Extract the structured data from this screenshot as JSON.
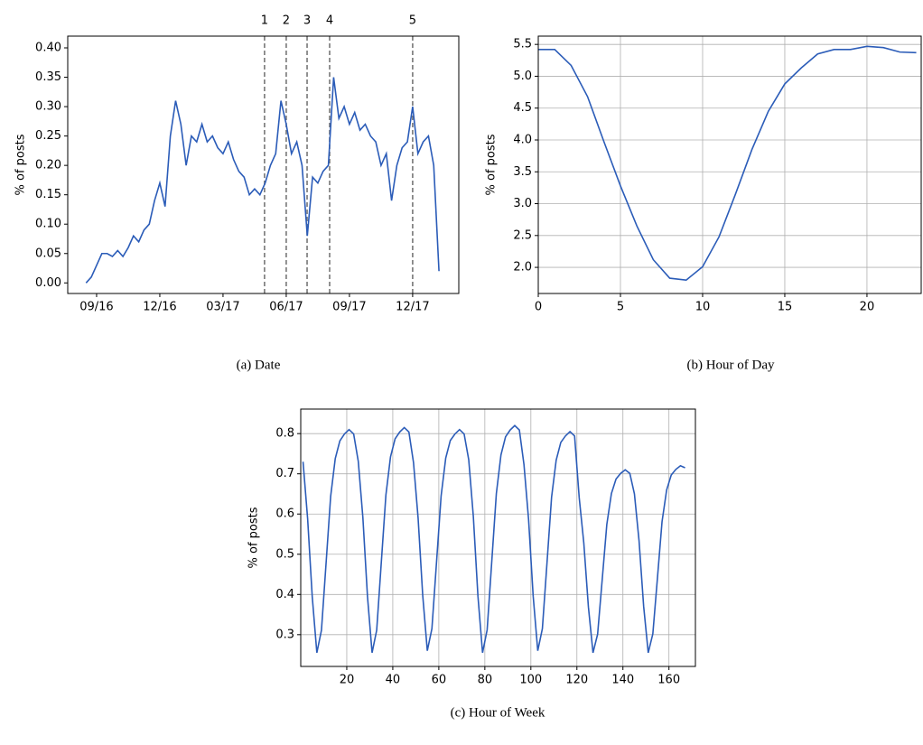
{
  "chart_data": [
    {
      "type": "line",
      "caption": "(a) Date",
      "ylabel": "% of posts",
      "color": "#2b5cb8",
      "grid": false,
      "x": [
        8.5,
        8.75,
        9,
        9.25,
        9.5,
        9.75,
        10,
        10.25,
        10.5,
        10.75,
        11,
        11.25,
        11.5,
        11.75,
        12,
        12.25,
        12.5,
        12.75,
        13,
        13.25,
        13.5,
        13.75,
        14,
        14.25,
        14.5,
        14.75,
        15,
        15.25,
        15.5,
        15.75,
        16,
        16.25,
        16.5,
        16.75,
        17,
        17.25,
        17.5,
        17.75,
        18,
        18.25,
        18.5,
        18.75,
        19,
        19.25,
        19.5,
        19.75,
        20,
        20.25,
        20.5,
        20.75,
        21,
        21.25,
        21.5,
        21.75,
        22,
        22.25,
        22.5,
        22.75,
        23,
        23.25,
        23.5,
        23.75,
        24,
        24.25,
        24.5,
        24.75,
        25,
        25.25
      ],
      "values": [
        0.0,
        0.01,
        0.03,
        0.05,
        0.05,
        0.045,
        0.055,
        0.045,
        0.06,
        0.08,
        0.07,
        0.09,
        0.1,
        0.14,
        0.17,
        0.13,
        0.25,
        0.31,
        0.27,
        0.2,
        0.25,
        0.24,
        0.27,
        0.24,
        0.25,
        0.23,
        0.22,
        0.24,
        0.21,
        0.19,
        0.18,
        0.15,
        0.16,
        0.15,
        0.17,
        0.2,
        0.22,
        0.31,
        0.27,
        0.22,
        0.24,
        0.2,
        0.08,
        0.18,
        0.17,
        0.19,
        0.2,
        0.35,
        0.28,
        0.3,
        0.27,
        0.29,
        0.26,
        0.27,
        0.25,
        0.24,
        0.2,
        0.22,
        0.14,
        0.2,
        0.23,
        0.24,
        0.3,
        0.22,
        0.24,
        0.25,
        0.2,
        0.02
      ],
      "xlim": [
        7.63,
        26.19
      ],
      "ylim": [
        -0.018,
        0.42
      ],
      "xticks": [
        {
          "value": 9,
          "label": "09/16"
        },
        {
          "value": 12,
          "label": "12/16"
        },
        {
          "value": 15,
          "label": "03/17"
        },
        {
          "value": 18,
          "label": "06/17"
        },
        {
          "value": 21,
          "label": "09/17"
        },
        {
          "value": 24,
          "label": "12/17"
        }
      ],
      "yticks": [
        {
          "value": 0,
          "label": "0.00"
        },
        0.05,
        {
          "value": 0.1,
          "label": "0.10"
        },
        0.15,
        {
          "value": 0.2,
          "label": "0.20"
        },
        0.25,
        {
          "value": 0.3,
          "label": "0.30"
        },
        0.35,
        {
          "value": 0.4,
          "label": "0.40"
        }
      ],
      "annotations": [
        {
          "label": "1",
          "x": 16.97
        },
        {
          "label": "2",
          "x": 18.0
        },
        {
          "label": "3",
          "x": 18.99
        },
        {
          "label": "4",
          "x": 20.06
        },
        {
          "label": "5",
          "x": 24.0
        }
      ]
    },
    {
      "type": "line",
      "caption": "(b) Hour of Day",
      "ylabel": "% of posts",
      "color": "#2b5cb8",
      "grid": true,
      "x": [
        0,
        1,
        2,
        3,
        4,
        5,
        6,
        7,
        8,
        9,
        10,
        11,
        12,
        13,
        14,
        15,
        16,
        17,
        18,
        19,
        20,
        21,
        22,
        23
      ],
      "values": [
        5.42,
        5.42,
        5.17,
        4.68,
        3.97,
        3.28,
        2.65,
        2.12,
        1.83,
        1.8,
        2.01,
        2.48,
        3.15,
        3.85,
        4.45,
        4.88,
        5.13,
        5.35,
        5.42,
        5.42,
        5.47,
        5.45,
        5.38,
        5.37
      ],
      "xlim": [
        0,
        23.3
      ],
      "ylim": [
        1.59,
        5.63
      ],
      "xticks": [
        0,
        5,
        10,
        15,
        20
      ],
      "yticks": [
        {
          "value": 2,
          "label": "2.0"
        },
        2.5,
        {
          "value": 3,
          "label": "3.0"
        },
        3.5,
        {
          "value": 4,
          "label": "4.0"
        },
        4.5,
        {
          "value": 5,
          "label": "5.0"
        },
        5.5
      ]
    },
    {
      "type": "line",
      "caption": "(c) Hour of Week",
      "ylabel": "% of posts",
      "color": "#2b5cb8",
      "grid": true,
      "x": [
        1,
        3,
        5,
        7,
        9,
        11,
        13,
        15,
        17,
        19,
        21,
        23,
        25,
        27,
        29,
        31,
        33,
        35,
        37,
        39,
        41,
        43,
        45,
        47,
        49,
        51,
        53,
        55,
        57,
        59,
        61,
        63,
        65,
        67,
        69,
        71,
        73,
        75,
        77,
        79,
        81,
        83,
        85,
        87,
        89,
        91,
        93,
        95,
        97,
        99,
        101,
        103,
        105,
        107,
        109,
        111,
        113,
        115,
        117,
        119,
        121,
        123,
        125,
        127,
        129,
        131,
        133,
        135,
        137,
        139,
        141,
        143,
        145,
        147,
        149,
        151,
        153,
        155,
        157,
        159,
        161,
        163,
        165,
        167
      ],
      "values": [
        0.73,
        0.588,
        0.394,
        0.255,
        0.311,
        0.477,
        0.644,
        0.738,
        0.782,
        0.799,
        0.81,
        0.799,
        0.731,
        0.591,
        0.395,
        0.255,
        0.311,
        0.479,
        0.647,
        0.742,
        0.787,
        0.804,
        0.815,
        0.804,
        0.728,
        0.59,
        0.398,
        0.26,
        0.315,
        0.48,
        0.645,
        0.739,
        0.783,
        0.799,
        0.81,
        0.799,
        0.735,
        0.594,
        0.396,
        0.255,
        0.312,
        0.481,
        0.651,
        0.747,
        0.792,
        0.809,
        0.82,
        0.809,
        0.723,
        0.587,
        0.396,
        0.26,
        0.315,
        0.478,
        0.642,
        0.734,
        0.778,
        0.794,
        0.805,
        0.794,
        0.641,
        0.528,
        0.369,
        0.255,
        0.301,
        0.437,
        0.574,
        0.651,
        0.687,
        0.701,
        0.71,
        0.701,
        0.65,
        0.534,
        0.371,
        0.255,
        0.302,
        0.441,
        0.581,
        0.66,
        0.697,
        0.711,
        0.72,
        0.715
      ],
      "xlim": [
        0,
        171.5
      ],
      "ylim": [
        0.221,
        0.861
      ],
      "xticks": [
        20,
        40,
        60,
        80,
        100,
        120,
        140,
        160
      ],
      "yticks": [
        0.3,
        0.4,
        0.5,
        0.6,
        0.7,
        0.8
      ]
    }
  ]
}
